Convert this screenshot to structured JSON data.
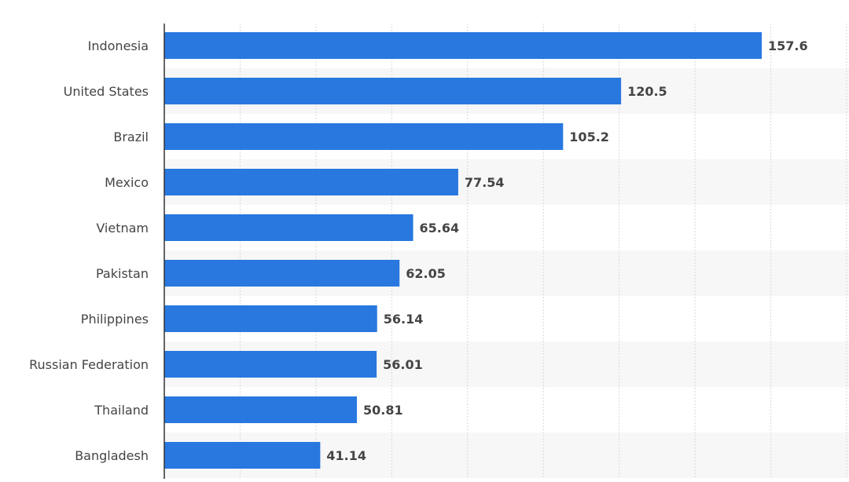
{
  "chart_data": {
    "type": "bar",
    "orientation": "horizontal",
    "categories": [
      "Indonesia",
      "United States",
      "Brazil",
      "Mexico",
      "Vietnam",
      "Pakistan",
      "Philippines",
      "Russian Federation",
      "Thailand",
      "Bangladesh"
    ],
    "values": [
      157.6,
      120.5,
      105.2,
      77.54,
      65.64,
      62.05,
      56.14,
      56.01,
      50.81,
      41.14
    ],
    "value_labels": [
      "157.6",
      "120.5",
      "105.2",
      "77.54",
      "65.64",
      "62.05",
      "56.14",
      "56.01",
      "50.81",
      "41.14"
    ],
    "xlim": [
      0,
      180
    ],
    "x_gridline_step": 20,
    "grid": true,
    "title": "",
    "xlabel": "",
    "ylabel": "",
    "colors": {
      "bar": "#2878df",
      "band": "#f7f7f7",
      "grid": "#d8d8d8",
      "axis": "#333333",
      "label": "#444444"
    }
  }
}
